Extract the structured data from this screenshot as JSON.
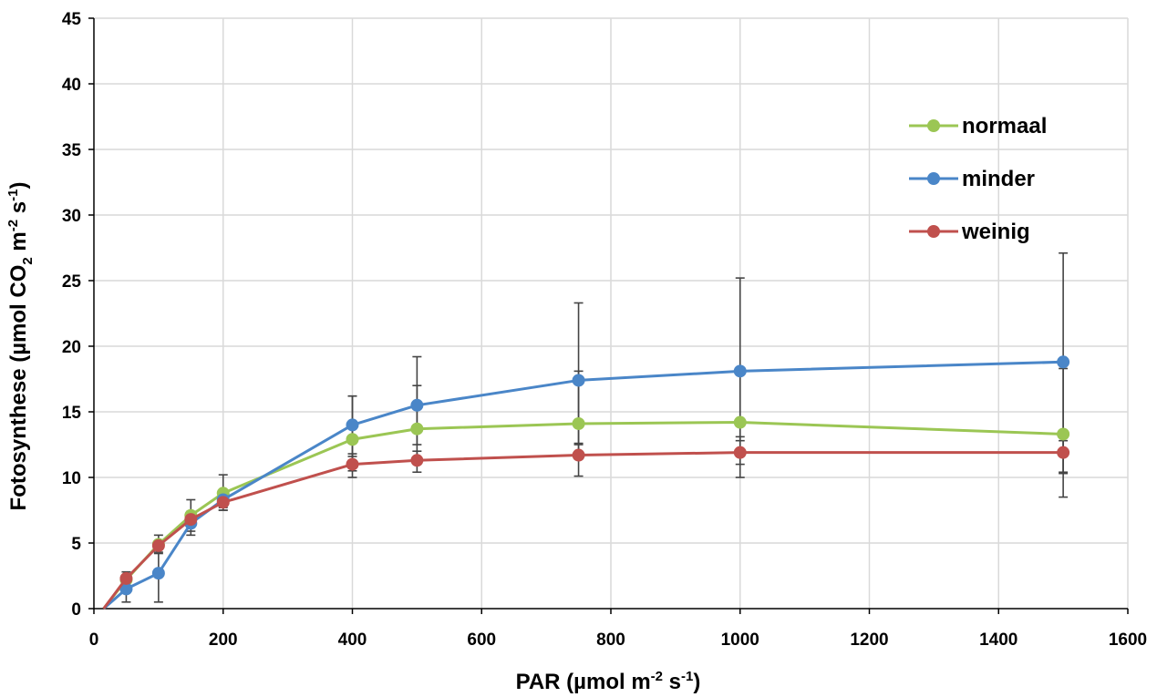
{
  "chart_data": {
    "type": "line",
    "xlabel": "PAR (µmol m-2 s-1)",
    "xlabel_parts": {
      "main": "PAR (µmol m",
      "exp1": "-2",
      "mid": " s",
      "exp2": "-1",
      "end": ")"
    },
    "ylabel": "Fotosynthese (µmol CO2 m-2 s-1)",
    "ylabel_parts": {
      "main": "Fotosynthese (µmol CO",
      "sub": "2",
      "mid1": " m",
      "exp1": "-2",
      "mid2": " s",
      "exp2": "-1",
      "end": ")"
    },
    "xlim": [
      0,
      1600
    ],
    "ylim": [
      0,
      45
    ],
    "xticks": [
      0,
      200,
      400,
      600,
      800,
      1000,
      1200,
      1400,
      1600
    ],
    "yticks": [
      0,
      5,
      10,
      15,
      20,
      25,
      30,
      35,
      40,
      45
    ],
    "grid": true,
    "legend_position": "upper-right",
    "series": [
      {
        "name": "normaal",
        "color": "#9bc654",
        "x": [
          15,
          50,
          100,
          150,
          200,
          400,
          500,
          750,
          1000,
          1500
        ],
        "y": [
          0,
          2.2,
          4.9,
          7.1,
          8.8,
          12.9,
          13.7,
          14.1,
          14.2,
          13.3
        ],
        "err_lo": [
          null,
          null,
          null,
          1.2,
          1.3,
          1.3,
          1.2,
          1.5,
          1.4,
          4.8
        ],
        "err_hi": [
          null,
          null,
          null,
          1.2,
          1.4,
          3.3,
          3.3,
          4.0,
          4.0,
          5.0
        ]
      },
      {
        "name": "minder",
        "color": "#4a86c8",
        "x": [
          15,
          50,
          100,
          150,
          200,
          400,
          500,
          750,
          1000,
          1500
        ],
        "y": [
          0,
          1.5,
          2.7,
          6.5,
          8.3,
          14.0,
          15.5,
          17.4,
          18.1,
          18.8
        ],
        "err_lo": [
          null,
          1.0,
          2.2,
          0.9,
          0.6,
          3.5,
          4.0,
          6.0,
          7.1,
          8.4
        ],
        "err_hi": [
          null,
          0.8,
          1.5,
          0.9,
          0.5,
          2.2,
          3.7,
          5.9,
          7.1,
          8.3
        ]
      },
      {
        "name": "weinig",
        "color": "#c0504d",
        "x": [
          15,
          50,
          100,
          150,
          200,
          400,
          500,
          750,
          1000,
          1500
        ],
        "y": [
          0,
          2.3,
          4.8,
          6.8,
          8.1,
          11.0,
          11.3,
          11.7,
          11.9,
          11.9
        ],
        "err_lo": [
          null,
          0.5,
          0.5,
          0.5,
          0.6,
          1.0,
          0.9,
          1.6,
          1.9,
          1.6
        ],
        "err_hi": [
          null,
          0.5,
          0.8,
          0.6,
          0.5,
          0.8,
          0.7,
          0.8,
          1.2,
          0.9
        ]
      }
    ]
  }
}
